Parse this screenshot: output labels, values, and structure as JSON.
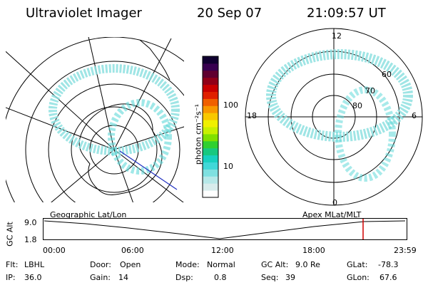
{
  "header": {
    "instrument": "Ultraviolet Imager",
    "date": "20 Sep 07",
    "time": "21:09:57 UT"
  },
  "colorbar": {
    "unit_label": "photon cm⁻²s⁻¹",
    "ticks": [
      "100",
      "10"
    ],
    "scale": "log",
    "colors": [
      "#ffffff",
      "#d8ecec",
      "#b6e8e8",
      "#7fe0e0",
      "#40d8d8",
      "#18d0c0",
      "#18c880",
      "#30d030",
      "#80e000",
      "#c8f000",
      "#f0f000",
      "#f8c800",
      "#f89800",
      "#f06000",
      "#e02000",
      "#c80000",
      "#900018",
      "#600030",
      "#380050",
      "#100030"
    ]
  },
  "left_map": {
    "caption": "Geographic Lat/Lon"
  },
  "right_map": {
    "caption": "Apex  MLat/MLT",
    "mlt_labels": {
      "top": "12",
      "bottom": "0",
      "left": "18",
      "right": "6"
    },
    "lat_labels": [
      "60",
      "70",
      "80"
    ]
  },
  "altitude_plot": {
    "ylabel": "GC Alt",
    "yticks": [
      "9.0",
      "1.8"
    ],
    "xticks": [
      "00:00",
      "06:00",
      "12:00",
      "18:00",
      "23:59"
    ],
    "marker_color": "#d00000"
  },
  "footer": {
    "row1": [
      {
        "label": "Flt:",
        "value": "LBHL"
      },
      {
        "label": "Door:",
        "value": "Open"
      },
      {
        "label": "Mode:",
        "value": "Normal"
      },
      {
        "label": "GC Alt:",
        "value": "9.0 Re"
      },
      {
        "label": "GLat:",
        "value": "-78.3"
      }
    ],
    "row2": [
      {
        "label": "IP:",
        "value": "36.0"
      },
      {
        "label": "Gain:",
        "value": "14"
      },
      {
        "label": "Dsp:",
        "value": "0.8"
      },
      {
        "label": "Seq:",
        "value": "39"
      },
      {
        "label": "GLon:",
        "value": "67.6"
      }
    ]
  }
}
